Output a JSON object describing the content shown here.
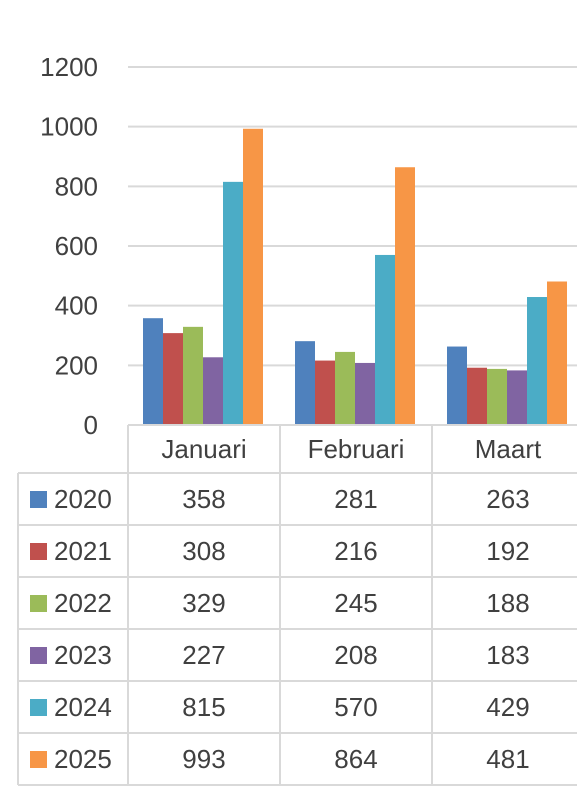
{
  "chart_data": {
    "type": "bar",
    "categories": [
      "Januari",
      "Februari",
      "Maart"
    ],
    "series": [
      {
        "name": "2020",
        "color": "#4f81bd",
        "values": [
          358,
          281,
          263
        ]
      },
      {
        "name": "2021",
        "color": "#c0504d",
        "values": [
          308,
          216,
          192
        ]
      },
      {
        "name": "2022",
        "color": "#9bbb59",
        "values": [
          329,
          245,
          188
        ]
      },
      {
        "name": "2023",
        "color": "#8064a2",
        "values": [
          227,
          208,
          183
        ]
      },
      {
        "name": "2024",
        "color": "#4bacc6",
        "values": [
          815,
          570,
          429
        ]
      },
      {
        "name": "2025",
        "color": "#f79646",
        "values": [
          993,
          864,
          481
        ]
      }
    ],
    "ylim": [
      0,
      1200
    ],
    "yticks": [
      "0",
      "200",
      "400",
      "600",
      "800",
      "1000",
      "1200"
    ],
    "grid": true,
    "legend_placement": "data-table-left"
  }
}
